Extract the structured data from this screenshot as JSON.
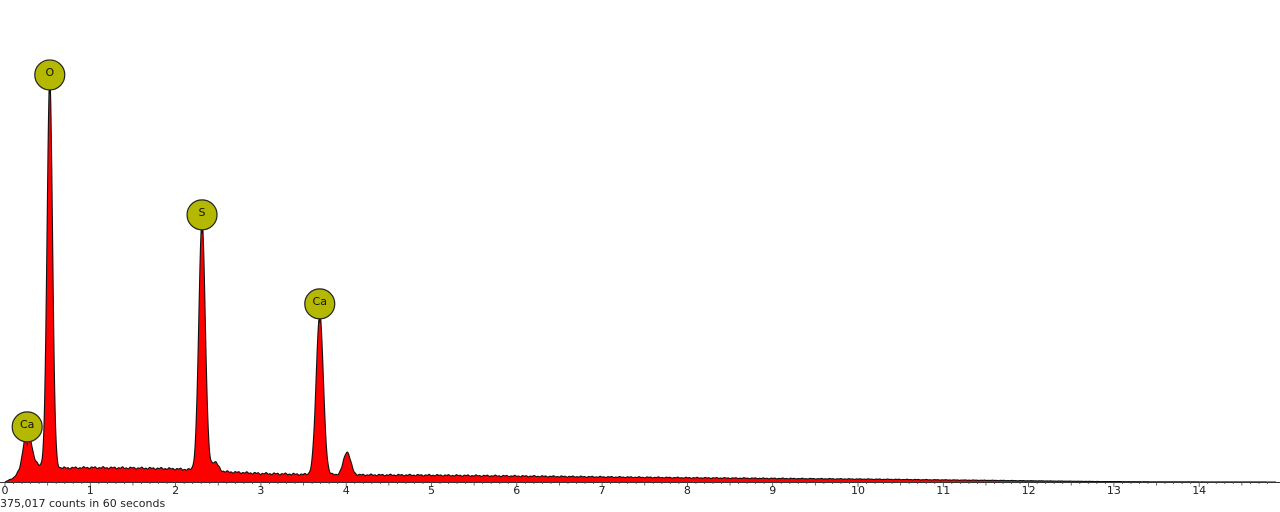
{
  "chart_data": {
    "type": "area",
    "title": "",
    "xlabel": "",
    "ylabel": "",
    "xlim": [
      0,
      14.9
    ],
    "ylim": [
      0,
      100
    ],
    "grid": false,
    "legend": "none",
    "fill_color": "#ff0000",
    "line_color": "#111111",
    "marker_color": "#b5b800",
    "x_ticks": [
      0,
      1,
      2,
      3,
      4,
      5,
      6,
      7,
      8,
      9,
      10,
      11,
      12,
      13,
      14
    ],
    "series": [
      {
        "values_note": "",
        "background": [
          [
            0.0,
            0
          ],
          [
            0.1,
            1
          ],
          [
            0.22,
            3
          ],
          [
            0.3,
            4.5
          ],
          [
            0.5,
            3.5
          ],
          [
            0.7,
            3.3
          ],
          [
            1.0,
            3.4
          ],
          [
            1.5,
            3.3
          ],
          [
            1.8,
            3.2
          ],
          [
            2.0,
            3.1
          ],
          [
            2.5,
            2.5
          ],
          [
            3.0,
            2.0
          ],
          [
            3.5,
            1.8
          ],
          [
            4.0,
            1.7
          ],
          [
            5.0,
            1.6
          ],
          [
            6.0,
            1.4
          ],
          [
            7.0,
            1.2
          ],
          [
            8.0,
            1.0
          ],
          [
            9.0,
            0.85
          ],
          [
            10.0,
            0.7
          ],
          [
            11.0,
            0.5
          ],
          [
            12.0,
            0.3
          ],
          [
            12.8,
            0.12
          ],
          [
            13.5,
            0.05
          ],
          [
            14.9,
            0.0
          ]
        ],
        "peaks": [
          {
            "center": 0.26,
            "height": 9.0,
            "width": 0.045
          },
          {
            "center": 0.525,
            "height": 92.0,
            "width": 0.032
          },
          {
            "center": 2.31,
            "height": 59.0,
            "width": 0.038
          },
          {
            "center": 2.46,
            "height": 2.2,
            "width": 0.04
          },
          {
            "center": 3.69,
            "height": 38.0,
            "width": 0.042
          },
          {
            "center": 4.01,
            "height": 5.4,
            "width": 0.042
          }
        ]
      }
    ],
    "peak_markers": [
      {
        "label": "O",
        "x": 0.525,
        "y": 92.0
      },
      {
        "label": "S",
        "x": 2.31,
        "y": 59.0
      },
      {
        "label": "Ca",
        "x": 3.69,
        "y": 38.0
      },
      {
        "label": "Ca",
        "x": 0.26,
        "y": 9.0
      }
    ]
  },
  "footer": {
    "counts_text": "375,017 counts in 60 seconds"
  }
}
